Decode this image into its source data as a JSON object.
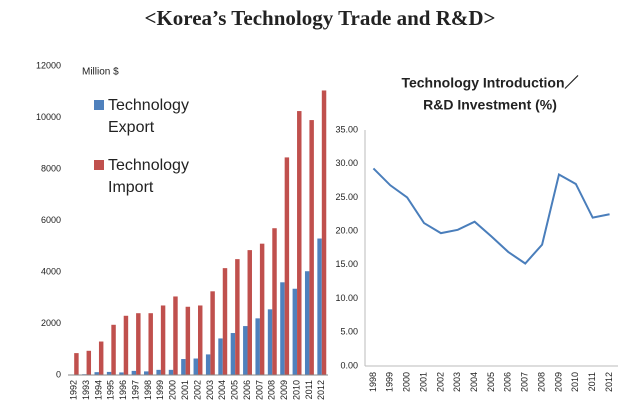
{
  "title": "<Korea’s Technology Trade and R&D>",
  "chart_data": [
    {
      "type": "bar",
      "y_label": "Million $",
      "categories": [
        "1992",
        "1993",
        "1994",
        "1995",
        "1996",
        "1997",
        "1998",
        "1999",
        "2000",
        "2001",
        "2002",
        "2003",
        "2004",
        "2005",
        "2006",
        "2007",
        "2008",
        "2009",
        "2010",
        "2011",
        "2012"
      ],
      "series": [
        {
          "name": "Technology Export",
          "color": "#4f81bd",
          "values": [
            20,
            30,
            110,
            120,
            100,
            160,
            140,
            200,
            200,
            620,
            640,
            800,
            1420,
            1630,
            1900,
            2200,
            2550,
            3600,
            3350,
            4030,
            5300
          ]
        },
        {
          "name": "Technology Import",
          "color": "#c0504d",
          "values": [
            850,
            940,
            1300,
            1950,
            2300,
            2400,
            2400,
            2700,
            3050,
            2650,
            2700,
            3250,
            4150,
            4500,
            4850,
            5100,
            5700,
            8450,
            10250,
            9900,
            11050
          ]
        }
      ],
      "ylim": [
        0,
        12000
      ],
      "yticks": [
        0,
        2000,
        4000,
        6000,
        8000,
        10000,
        12000
      ],
      "grid": false
    },
    {
      "type": "line",
      "title": [
        "Technology Introduction／",
        "R&D Investment (%)"
      ],
      "categories": [
        "1998",
        "1999",
        "2000",
        "2001",
        "2002",
        "2003",
        "2004",
        "2005",
        "2006",
        "2007",
        "2008",
        "2009",
        "2010",
        "2011",
        "2012"
      ],
      "series": [
        {
          "name": null,
          "color": "#4a7ebb",
          "values": [
            29.3,
            26.8,
            25.0,
            21.2,
            19.7,
            20.2,
            21.4,
            19.2,
            16.9,
            15.2,
            18.0,
            28.4,
            27.0,
            22.0,
            22.5
          ]
        }
      ],
      "ylim": [
        0,
        35
      ],
      "yticks": [
        {
          "value": 0,
          "label": "0.00"
        },
        {
          "value": 5,
          "label": "5.00"
        },
        {
          "value": 10,
          "label": "10.00"
        },
        {
          "value": 15,
          "label": "15.00"
        },
        {
          "value": 20,
          "label": "20.00"
        },
        {
          "value": 25,
          "label": "25.00"
        },
        {
          "value": 30,
          "label": "30.00"
        },
        {
          "value": 35,
          "label": "35.00"
        }
      ],
      "grid": false
    }
  ]
}
